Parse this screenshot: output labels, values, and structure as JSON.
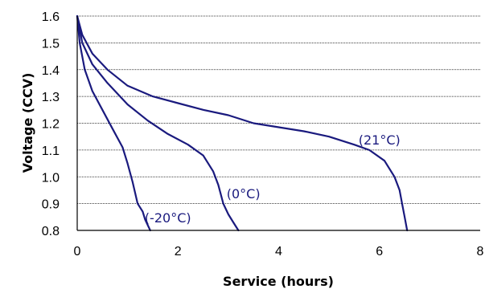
{
  "chart_data": {
    "type": "line",
    "title": "",
    "xlabel": "Service (hours)",
    "ylabel": "Voltage (CCV)",
    "xlim": [
      0,
      8
    ],
    "ylim": [
      0.8,
      1.6
    ],
    "x_ticks": [
      "0",
      "2",
      "4",
      "6",
      "8"
    ],
    "y_ticks": [
      "0.8",
      "0.9",
      "1.0",
      "1.1",
      "1.2",
      "1.3",
      "1.4",
      "1.5",
      "1.6"
    ],
    "x_tick_values": [
      0,
      2,
      4,
      6,
      8
    ],
    "y_tick_values": [
      0.8,
      0.9,
      1.0,
      1.1,
      1.2,
      1.3,
      1.4,
      1.5,
      1.6
    ],
    "grid": "horizontal",
    "line_color": "#1a1a7e",
    "series": [
      {
        "name": "(21°C)",
        "points": [
          [
            0,
            1.6
          ],
          [
            0.1,
            1.53
          ],
          [
            0.3,
            1.46
          ],
          [
            0.6,
            1.4
          ],
          [
            1.0,
            1.34
          ],
          [
            1.5,
            1.3
          ],
          [
            2.0,
            1.275
          ],
          [
            2.5,
            1.25
          ],
          [
            3.0,
            1.23
          ],
          [
            3.5,
            1.2
          ],
          [
            4.0,
            1.185
          ],
          [
            4.5,
            1.17
          ],
          [
            5.0,
            1.15
          ],
          [
            5.5,
            1.12
          ],
          [
            5.8,
            1.1
          ],
          [
            6.1,
            1.06
          ],
          [
            6.3,
            1.0
          ],
          [
            6.4,
            0.95
          ],
          [
            6.45,
            0.9
          ],
          [
            6.5,
            0.85
          ],
          [
            6.55,
            0.8
          ]
        ]
      },
      {
        "name": "(0°C)",
        "points": [
          [
            0,
            1.6
          ],
          [
            0.1,
            1.5
          ],
          [
            0.3,
            1.42
          ],
          [
            0.6,
            1.35
          ],
          [
            1.0,
            1.27
          ],
          [
            1.4,
            1.21
          ],
          [
            1.8,
            1.16
          ],
          [
            2.2,
            1.12
          ],
          [
            2.5,
            1.08
          ],
          [
            2.7,
            1.02
          ],
          [
            2.8,
            0.97
          ],
          [
            2.9,
            0.9
          ],
          [
            3.0,
            0.86
          ],
          [
            3.1,
            0.83
          ],
          [
            3.2,
            0.8
          ]
        ]
      },
      {
        "name": "(-20°C)",
        "points": [
          [
            0,
            1.6
          ],
          [
            0.05,
            1.5
          ],
          [
            0.15,
            1.4
          ],
          [
            0.3,
            1.32
          ],
          [
            0.5,
            1.25
          ],
          [
            0.7,
            1.18
          ],
          [
            0.9,
            1.11
          ],
          [
            1.0,
            1.05
          ],
          [
            1.1,
            0.98
          ],
          [
            1.15,
            0.94
          ],
          [
            1.2,
            0.9
          ],
          [
            1.3,
            0.87
          ],
          [
            1.35,
            0.84
          ],
          [
            1.45,
            0.8
          ]
        ]
      }
    ]
  }
}
